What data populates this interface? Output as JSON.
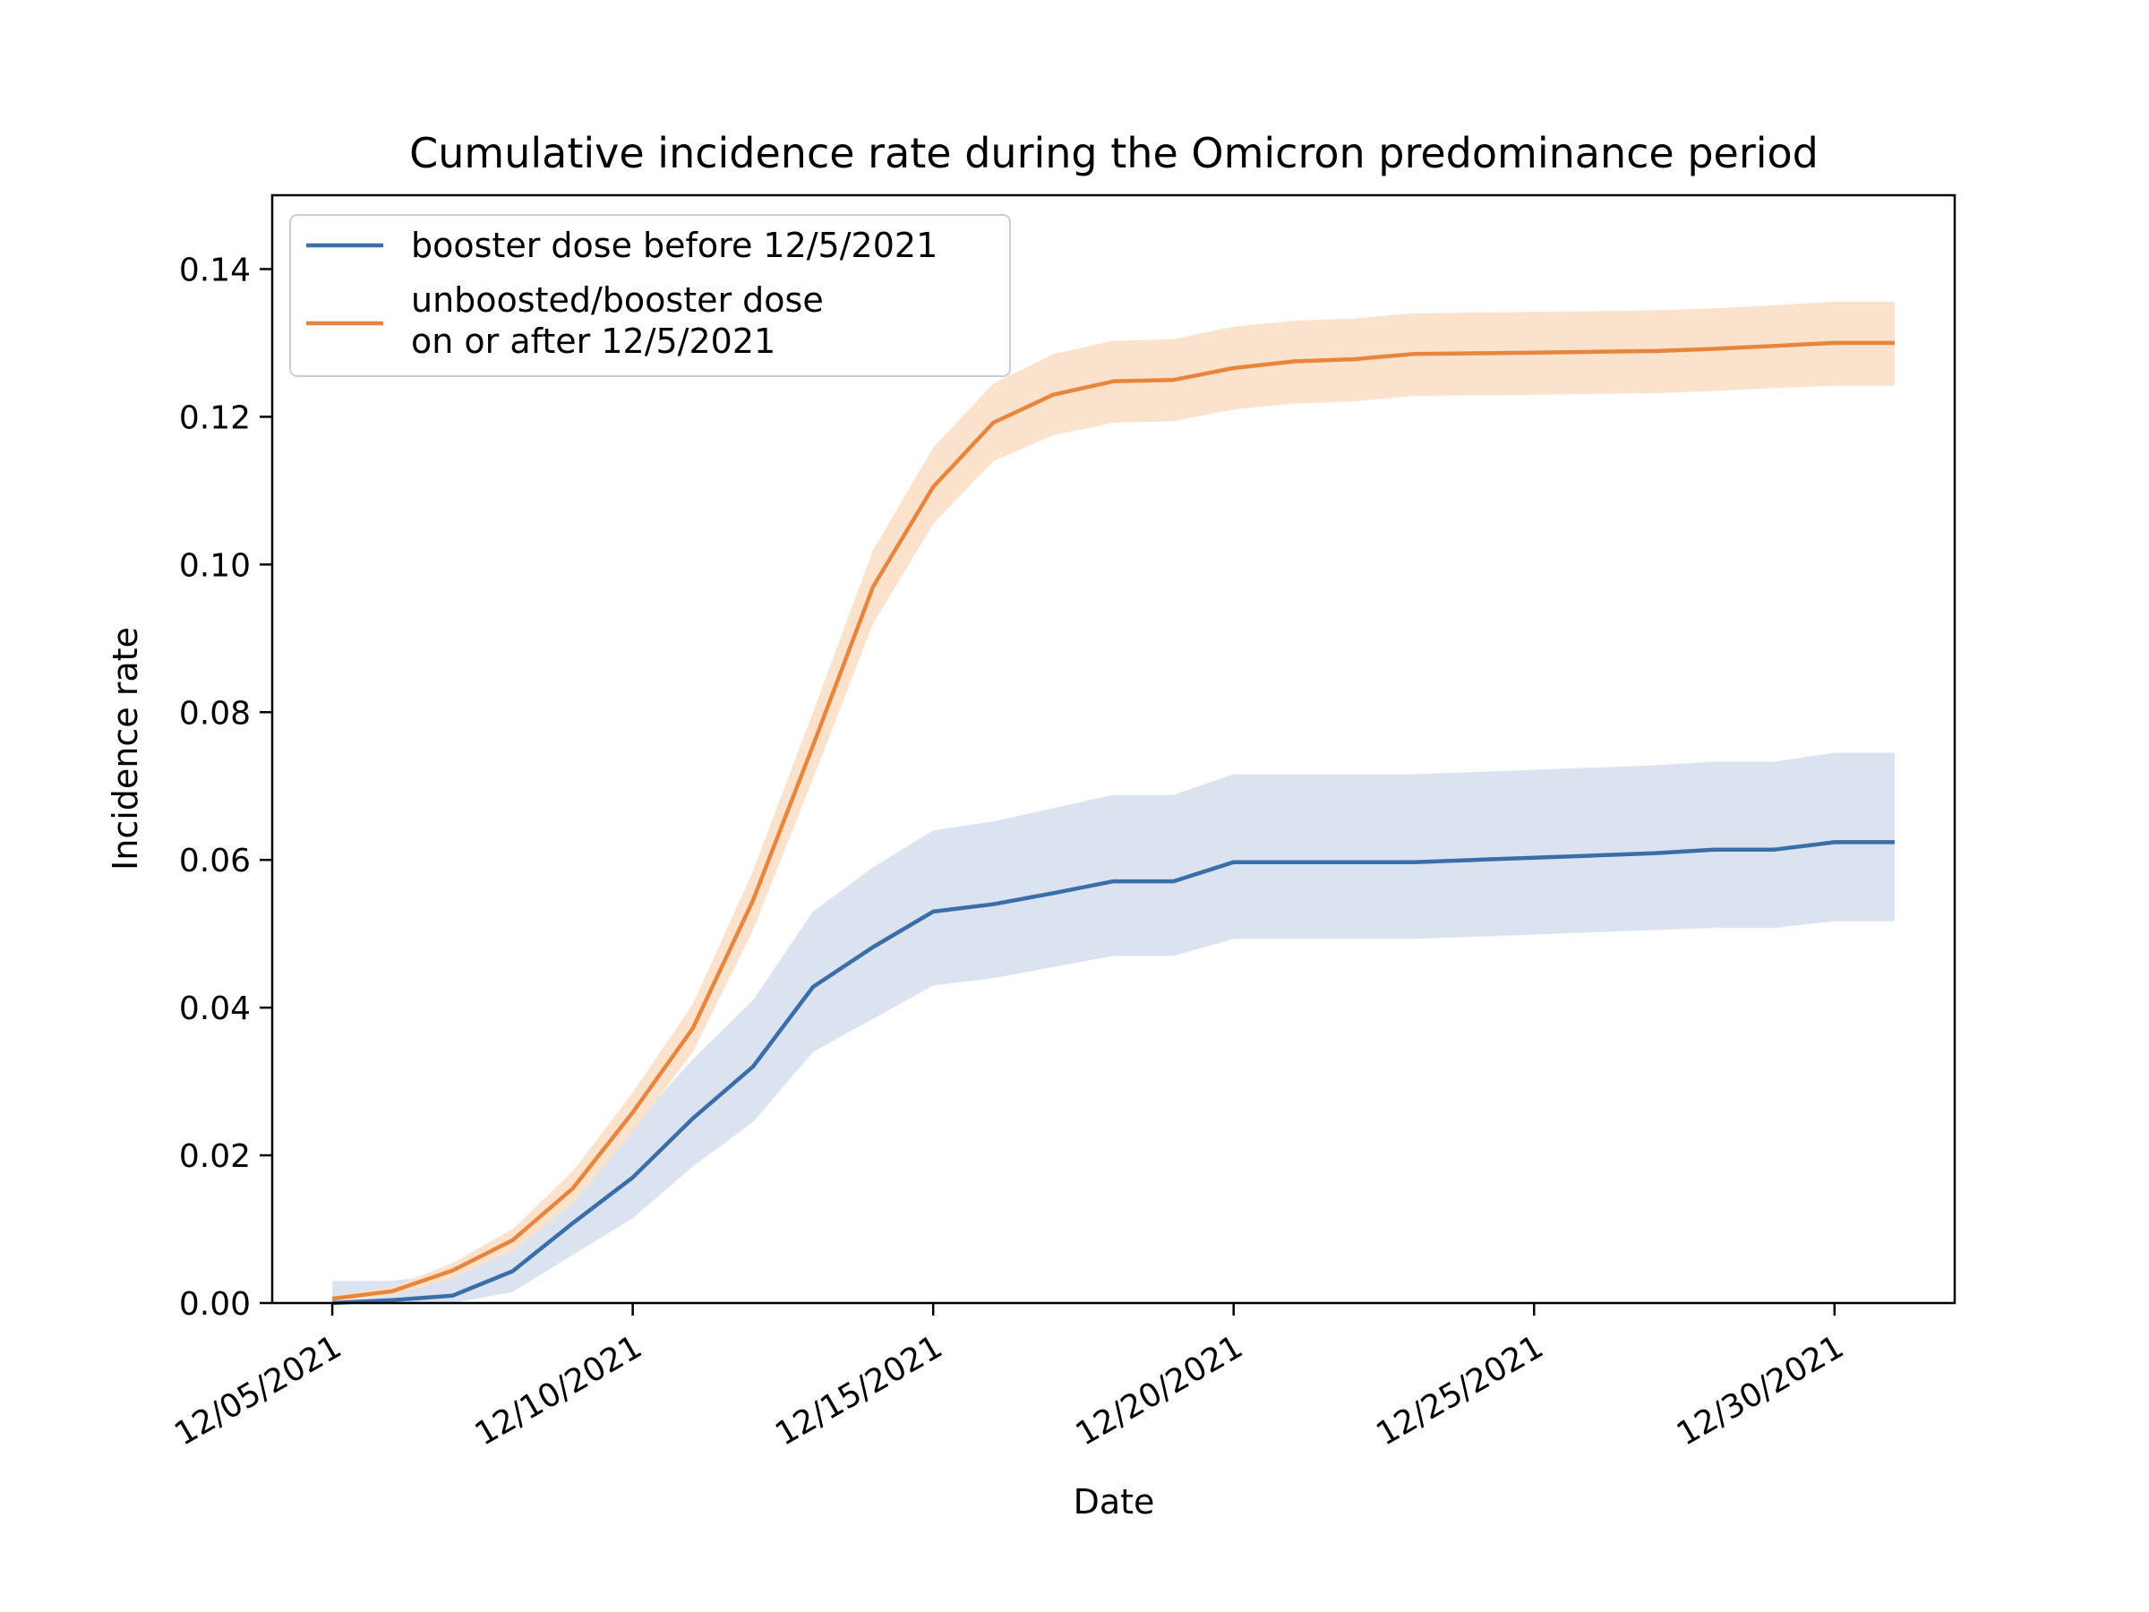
{
  "chart_data": {
    "type": "line",
    "title": "Cumulative incidence rate during the Omicron predominance period",
    "xlabel": "Date",
    "ylabel": "Incidence rate",
    "xlim": [
      "2021-12-04",
      "2022-01-01"
    ],
    "ylim": [
      0,
      0.15
    ],
    "x_ticks": [
      "2021-12-05",
      "2021-12-10",
      "2021-12-15",
      "2021-12-20",
      "2021-12-25",
      "2021-12-30"
    ],
    "x_tick_labels": [
      "12/05/2021",
      "12/10/2021",
      "12/15/2021",
      "12/20/2021",
      "12/25/2021",
      "12/30/2021"
    ],
    "y_ticks": [
      0,
      0.02,
      0.04,
      0.06,
      0.08,
      0.1,
      0.12,
      0.14
    ],
    "y_tick_labels": [
      "0.00",
      "0.02",
      "0.04",
      "0.06",
      "0.08",
      "0.10",
      "0.12",
      "0.14"
    ],
    "grid": false,
    "legend_position": "top-left",
    "series": [
      {
        "name": "booster dose before 12/5/2021",
        "color": "#3a6ea8",
        "band_color": "#dae3ef",
        "points": [
          {
            "x": "2021-12-05",
            "y": 0.0,
            "lo": 0.0,
            "hi": 0.003
          },
          {
            "x": "2021-12-06",
            "y": 0.0004,
            "lo": 0.0,
            "hi": 0.003
          },
          {
            "x": "2021-12-07",
            "y": 0.001,
            "lo": 0.0,
            "hi": 0.004
          },
          {
            "x": "2021-12-08",
            "y": 0.0043,
            "lo": 0.0015,
            "hi": 0.008
          },
          {
            "x": "2021-12-09",
            "y": 0.0108,
            "lo": 0.0065,
            "hi": 0.015
          },
          {
            "x": "2021-12-10",
            "y": 0.017,
            "lo": 0.0115,
            "hi": 0.024
          },
          {
            "x": "2021-12-11",
            "y": 0.025,
            "lo": 0.0185,
            "hi": 0.033
          },
          {
            "x": "2021-12-12",
            "y": 0.032,
            "lo": 0.0245,
            "hi": 0.041
          },
          {
            "x": "2021-12-13",
            "y": 0.0428,
            "lo": 0.034,
            "hi": 0.053
          },
          {
            "x": "2021-12-14",
            "y": 0.0482,
            "lo": 0.0385,
            "hi": 0.059
          },
          {
            "x": "2021-12-15",
            "y": 0.053,
            "lo": 0.043,
            "hi": 0.064
          },
          {
            "x": "2021-12-16",
            "y": 0.054,
            "lo": 0.044,
            "hi": 0.0652
          },
          {
            "x": "2021-12-17",
            "y": 0.0555,
            "lo": 0.0455,
            "hi": 0.067
          },
          {
            "x": "2021-12-18",
            "y": 0.0571,
            "lo": 0.047,
            "hi": 0.0688
          },
          {
            "x": "2021-12-19",
            "y": 0.0571,
            "lo": 0.047,
            "hi": 0.0688
          },
          {
            "x": "2021-12-20",
            "y": 0.0597,
            "lo": 0.0493,
            "hi": 0.0716
          },
          {
            "x": "2021-12-21",
            "y": 0.0597,
            "lo": 0.0493,
            "hi": 0.0716
          },
          {
            "x": "2021-12-22",
            "y": 0.0597,
            "lo": 0.0493,
            "hi": 0.0716
          },
          {
            "x": "2021-12-23",
            "y": 0.0597,
            "lo": 0.0493,
            "hi": 0.0716
          },
          {
            "x": "2021-12-24",
            "y": 0.06,
            "lo": 0.0496,
            "hi": 0.0719
          },
          {
            "x": "2021-12-25",
            "y": 0.0603,
            "lo": 0.0499,
            "hi": 0.0722
          },
          {
            "x": "2021-12-26",
            "y": 0.0606,
            "lo": 0.0502,
            "hi": 0.0725
          },
          {
            "x": "2021-12-27",
            "y": 0.0609,
            "lo": 0.0505,
            "hi": 0.0728
          },
          {
            "x": "2021-12-28",
            "y": 0.0614,
            "lo": 0.0508,
            "hi": 0.0733
          },
          {
            "x": "2021-12-29",
            "y": 0.0614,
            "lo": 0.0508,
            "hi": 0.0733
          },
          {
            "x": "2021-12-30",
            "y": 0.0624,
            "lo": 0.0517,
            "hi": 0.0745
          },
          {
            "x": "2021-12-31",
            "y": 0.0624,
            "lo": 0.0517,
            "hi": 0.0745
          }
        ]
      },
      {
        "name": "unboosted/booster dose\non or after 12/5/2021",
        "color": "#e8853d",
        "band_color": "#fae2cd",
        "points": [
          {
            "x": "2021-12-05",
            "y": 0.0006,
            "lo": 0.0003,
            "hi": 0.001
          },
          {
            "x": "2021-12-06",
            "y": 0.0016,
            "lo": 0.001,
            "hi": 0.0022
          },
          {
            "x": "2021-12-07",
            "y": 0.0044,
            "lo": 0.0034,
            "hi": 0.0054
          },
          {
            "x": "2021-12-08",
            "y": 0.0085,
            "lo": 0.007,
            "hi": 0.01
          },
          {
            "x": "2021-12-09",
            "y": 0.0155,
            "lo": 0.0135,
            "hi": 0.0178
          },
          {
            "x": "2021-12-10",
            "y": 0.0258,
            "lo": 0.0232,
            "hi": 0.0285
          },
          {
            "x": "2021-12-11",
            "y": 0.0372,
            "lo": 0.034,
            "hi": 0.0405
          },
          {
            "x": "2021-12-12",
            "y": 0.0545,
            "lo": 0.0505,
            "hi": 0.0585
          },
          {
            "x": "2021-12-13",
            "y": 0.0755,
            "lo": 0.071,
            "hi": 0.08
          },
          {
            "x": "2021-12-14",
            "y": 0.097,
            "lo": 0.092,
            "hi": 0.102
          },
          {
            "x": "2021-12-15",
            "y": 0.1105,
            "lo": 0.1055,
            "hi": 0.1158
          },
          {
            "x": "2021-12-16",
            "y": 0.1192,
            "lo": 0.114,
            "hi": 0.1245
          },
          {
            "x": "2021-12-17",
            "y": 0.123,
            "lo": 0.1175,
            "hi": 0.1285
          },
          {
            "x": "2021-12-18",
            "y": 0.1248,
            "lo": 0.1192,
            "hi": 0.1303
          },
          {
            "x": "2021-12-19",
            "y": 0.125,
            "lo": 0.1194,
            "hi": 0.1305
          },
          {
            "x": "2021-12-20",
            "y": 0.1266,
            "lo": 0.121,
            "hi": 0.1322
          },
          {
            "x": "2021-12-21",
            "y": 0.1275,
            "lo": 0.1218,
            "hi": 0.133
          },
          {
            "x": "2021-12-22",
            "y": 0.1278,
            "lo": 0.1221,
            "hi": 0.1333
          },
          {
            "x": "2021-12-23",
            "y": 0.1285,
            "lo": 0.1228,
            "hi": 0.134
          },
          {
            "x": "2021-12-24",
            "y": 0.1286,
            "lo": 0.1229,
            "hi": 0.1341
          },
          {
            "x": "2021-12-25",
            "y": 0.1287,
            "lo": 0.123,
            "hi": 0.1342
          },
          {
            "x": "2021-12-26",
            "y": 0.1288,
            "lo": 0.1231,
            "hi": 0.1343
          },
          {
            "x": "2021-12-27",
            "y": 0.1289,
            "lo": 0.1232,
            "hi": 0.1344
          },
          {
            "x": "2021-12-28",
            "y": 0.1292,
            "lo": 0.1235,
            "hi": 0.1347
          },
          {
            "x": "2021-12-29",
            "y": 0.1296,
            "lo": 0.1239,
            "hi": 0.1351
          },
          {
            "x": "2021-12-30",
            "y": 0.13,
            "lo": 0.1242,
            "hi": 0.1356
          },
          {
            "x": "2021-12-31",
            "y": 0.13,
            "lo": 0.1242,
            "hi": 0.1356
          }
        ]
      }
    ]
  }
}
